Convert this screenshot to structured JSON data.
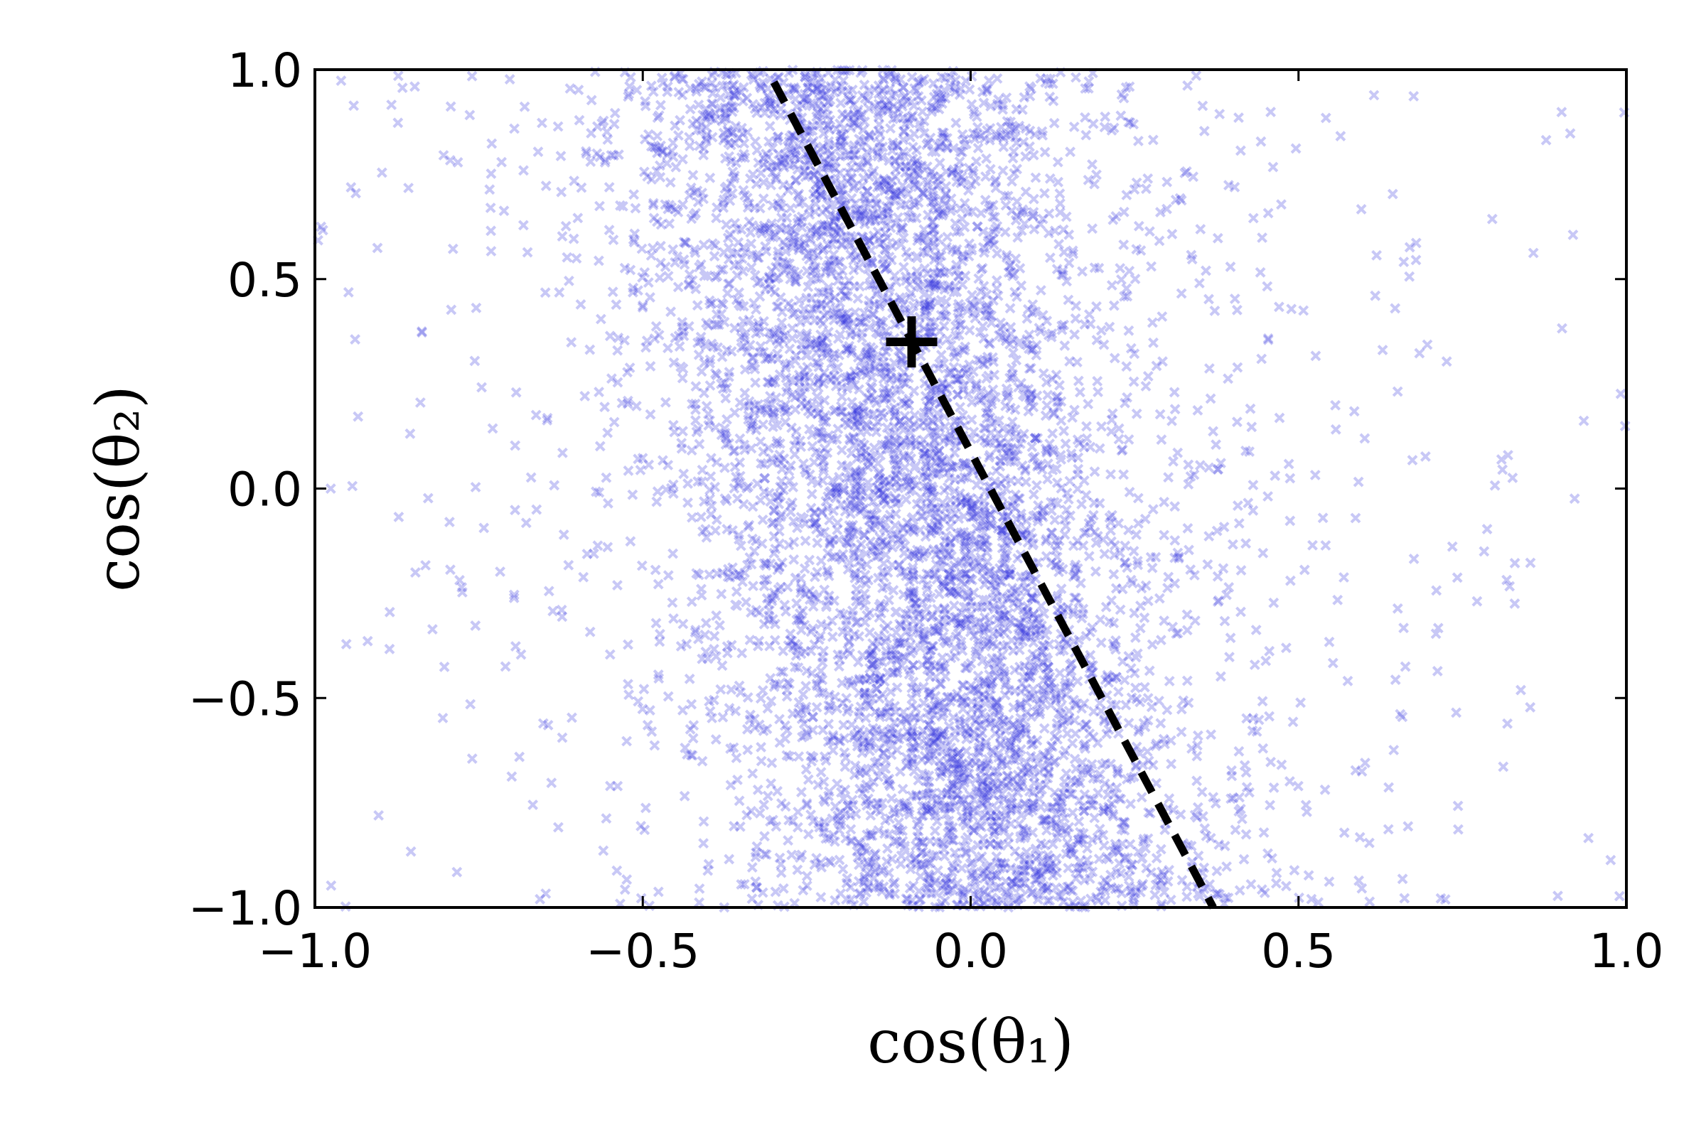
{
  "chart_data": {
    "type": "scatter",
    "title": "",
    "xlabel": "cos(θ₁)",
    "ylabel": "cos(θ₂)",
    "xlim": [
      -1.0,
      1.0
    ],
    "ylim": [
      -1.0,
      1.0
    ],
    "grid": false,
    "xticks": [
      -1.0,
      -0.5,
      0.0,
      0.5,
      1.0
    ],
    "yticks": [
      -1.0,
      -0.5,
      0.0,
      0.5,
      1.0
    ],
    "xtick_labels": [
      "−1.0",
      "−0.5",
      "0.0",
      "0.5",
      "1.0"
    ],
    "ytick_labels": [
      "−1.0",
      "−0.5",
      "0.0",
      "0.5",
      "1.0"
    ],
    "scatter_marker": "x",
    "scatter_color": "#2222dd",
    "scatter_alpha": 0.25,
    "scatter_distribution": {
      "approx_point_count": 6000,
      "trend": "negative correlation",
      "centre_at_y_plus1": -0.22,
      "centre_at_y_minus1": 0.05,
      "x_spread_sd": 0.17,
      "y_range": [
        -1.0,
        1.0
      ]
    },
    "reference_line": {
      "style": "dashed",
      "color": "#000000",
      "points": [
        [
          -0.3,
          0.97
        ],
        [
          0.37,
          -1.0
        ]
      ]
    },
    "reference_point": {
      "marker": "+",
      "color": "#000000",
      "x": -0.09,
      "y": 0.35
    }
  }
}
